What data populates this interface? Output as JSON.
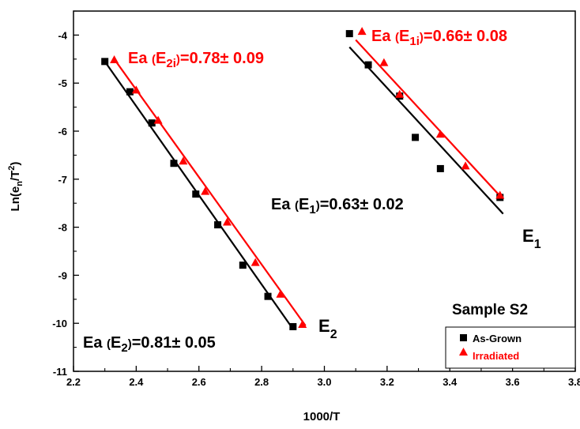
{
  "chart_data": {
    "type": "scatter",
    "xlabel": "1000/T",
    "ylabel": {
      "base": "Ln(e",
      "sub": "n",
      "mid": "/T",
      "sup": "2",
      "end": ")"
    },
    "xlim": [
      2.2,
      3.8
    ],
    "ylim": [
      -11,
      -3.5
    ],
    "xticks": [
      "2.2",
      "2.4",
      "2.6",
      "2.8",
      "3.0",
      "3.2",
      "3.4",
      "3.6",
      "3.8"
    ],
    "yticks": [
      "-4",
      "-5",
      "-6",
      "-7",
      "-8",
      "-9",
      "-10",
      "-11"
    ],
    "legend_title": "Sample S2",
    "legend_position": "bottom-right",
    "series": [
      {
        "name": "As-Grown",
        "marker": "square",
        "color": "#000000",
        "groups": [
          {
            "x": [
              2.3,
              2.38,
              2.45,
              2.52,
              2.59,
              2.66,
              2.74,
              2.82,
              2.9
            ],
            "y": [
              -4.55,
              -5.18,
              -5.83,
              -6.67,
              -7.31,
              -7.95,
              -8.79,
              -9.44,
              -10.07
            ]
          },
          {
            "x": [
              3.08,
              3.14,
              3.24,
              3.29,
              3.37,
              3.56
            ],
            "y": [
              -3.97,
              -4.62,
              -5.27,
              -6.13,
              -6.78,
              -7.38
            ]
          }
        ],
        "fits": [
          {
            "x": [
              2.3,
              2.9
            ],
            "y": [
              -4.55,
              -10.12
            ]
          },
          {
            "x": [
              3.08,
              3.57
            ],
            "y": [
              -4.25,
              -7.72
            ]
          }
        ]
      },
      {
        "name": "Irradiated",
        "marker": "triangle",
        "color": "#ff0000",
        "groups": [
          {
            "x": [
              2.33,
              2.4,
              2.47,
              2.55,
              2.62,
              2.69,
              2.78,
              2.86,
              2.93
            ],
            "y": [
              -4.52,
              -5.15,
              -5.78,
              -6.63,
              -7.26,
              -7.9,
              -8.74,
              -9.4,
              -10.03
            ]
          },
          {
            "x": [
              3.12,
              3.19,
              3.24,
              3.37,
              3.45,
              3.56
            ],
            "y": [
              -3.93,
              -4.58,
              -5.24,
              -6.07,
              -6.73,
              -7.34
            ]
          }
        ],
        "fits": [
          {
            "x": [
              2.33,
              2.94
            ],
            "y": [
              -4.5,
              -10.05
            ]
          },
          {
            "x": [
              3.1,
              3.57
            ],
            "y": [
              -4.1,
              -7.42
            ]
          }
        ]
      }
    ],
    "annotations": [
      {
        "prefix": "Ea ",
        "paren_open": "(",
        "label": "E",
        "sub": "2i",
        "paren_close": ")",
        "value": "=0.78± 0.09",
        "color": "#ff0000"
      },
      {
        "prefix": "Ea ",
        "paren_open": "(",
        "label": "E",
        "sub": "1i",
        "paren_close": ")",
        "value": "=0.66± 0.08",
        "color": "#ff0000"
      },
      {
        "prefix": "Ea ",
        "paren_open": "(",
        "label": "E",
        "sub": "1",
        "paren_close": ")",
        "value": "=0.63± 0.02",
        "color": "#000000"
      },
      {
        "prefix": "Ea ",
        "paren_open": "(",
        "label": "E",
        "sub": "2",
        "paren_close": ")",
        "value": "=0.81± 0.05",
        "color": "#000000"
      }
    ],
    "peak_labels": [
      {
        "label": "E",
        "sub": "1"
      },
      {
        "label": "E",
        "sub": "2"
      }
    ]
  }
}
